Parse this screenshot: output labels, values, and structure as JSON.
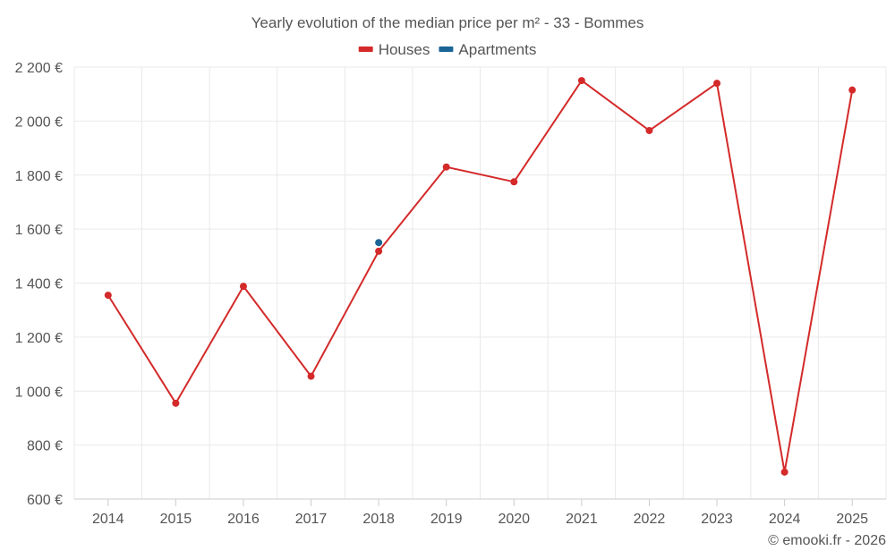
{
  "chart_data": {
    "type": "line",
    "title": "Yearly evolution of the median price per m² - 33 - Bommes",
    "categories": [
      "2014",
      "2015",
      "2016",
      "2017",
      "2018",
      "2019",
      "2020",
      "2021",
      "2022",
      "2023",
      "2024",
      "2025"
    ],
    "series": [
      {
        "name": "Houses",
        "color": "#d42a2a",
        "values": [
          1355,
          955,
          1388,
          1055,
          1518,
          1830,
          1775,
          2150,
          1965,
          2140,
          700,
          2115
        ]
      },
      {
        "name": "Apartments",
        "color": "#1a6496",
        "values": [
          null,
          null,
          null,
          null,
          1550,
          null,
          null,
          null,
          null,
          null,
          null,
          null
        ]
      }
    ],
    "ylim": [
      600,
      2200
    ],
    "yticks": [
      600,
      800,
      1000,
      1200,
      1400,
      1600,
      1800,
      2000,
      2200
    ],
    "ytick_labels": [
      "600 €",
      "800 €",
      "1 000 €",
      "1 200 €",
      "1 400 €",
      "1 600 €",
      "1 800 €",
      "2 000 €",
      "2 200 €"
    ],
    "xlabel": "",
    "ylabel": "",
    "grid": true,
    "legend_position": "top-center"
  },
  "credit": "© emooki.fr - 2026"
}
